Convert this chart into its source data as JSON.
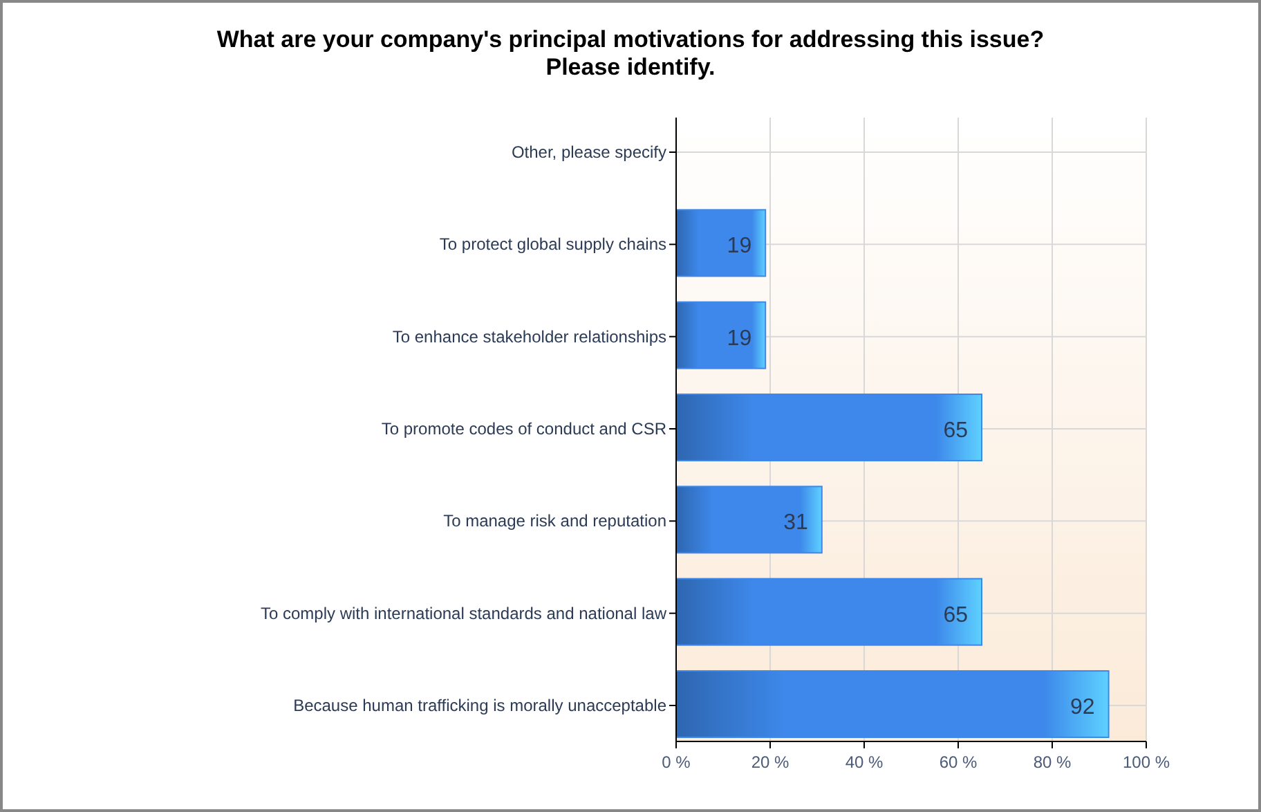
{
  "chart_data": {
    "type": "bar",
    "orientation": "horizontal",
    "title": "What are your company's principal motivations for addressing this issue? Please identify.",
    "categories": [
      "Other, please specify",
      "To protect global supply chains",
      "To enhance stakeholder relationships",
      "To promote codes of conduct and CSR",
      "To manage risk and reputation",
      "To comply with international standards and national law",
      "Because human trafficking is morally unacceptable"
    ],
    "values": [
      null,
      19,
      19,
      65,
      31,
      65,
      92
    ],
    "color": "#3d88ea",
    "xlim": [
      0,
      100
    ],
    "xticks": [
      {
        "value": 0,
        "label": "0 %"
      },
      {
        "value": 20,
        "label": "20 %"
      },
      {
        "value": 40,
        "label": "40 %"
      },
      {
        "value": 60,
        "label": "60 %"
      },
      {
        "value": 80,
        "label": "80 %"
      },
      {
        "value": 100,
        "label": "100 %"
      }
    ],
    "grid": true,
    "data_labels": true
  }
}
